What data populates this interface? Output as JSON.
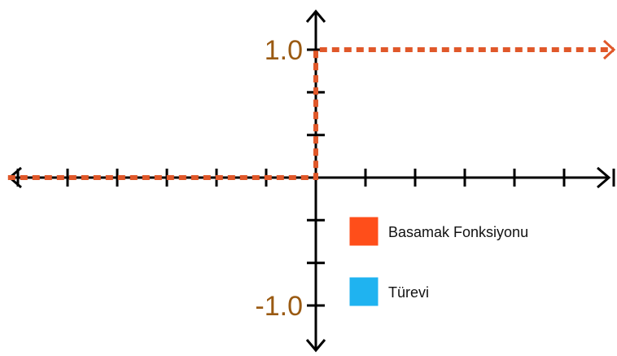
{
  "chart_data": {
    "type": "line",
    "title": "",
    "xlabel": "",
    "ylabel": "",
    "xlim": [
      -6.2,
      6
    ],
    "ylim": [
      -1.6,
      1.3
    ],
    "ytick_labels": [
      {
        "value": 1.0,
        "text": "1.0"
      },
      {
        "value": -1.0,
        "text": "-1.0"
      }
    ],
    "x_ticks": [
      -6,
      -5,
      -4,
      -3,
      -2,
      -1,
      0,
      1,
      2,
      3,
      4,
      5,
      6
    ],
    "y_ticks": [
      -1.0,
      -0.667,
      -0.333,
      0,
      0.333,
      0.667,
      1.0
    ],
    "grid": false,
    "legend_position": "right-below-axis",
    "series": [
      {
        "name": "Basamak Fonksiyonu",
        "color": "#ff4e1a",
        "line_color": "#e0582a",
        "style": "dotted",
        "points": [
          [
            -6.2,
            0
          ],
          [
            0,
            0
          ],
          [
            0,
            1
          ],
          [
            6,
            1
          ]
        ]
      },
      {
        "name": "Türevi",
        "color": "#1fb3f0",
        "style": "none",
        "points": []
      }
    ],
    "tick_label_color": "#9a5a12",
    "axis_color": "#000000"
  }
}
